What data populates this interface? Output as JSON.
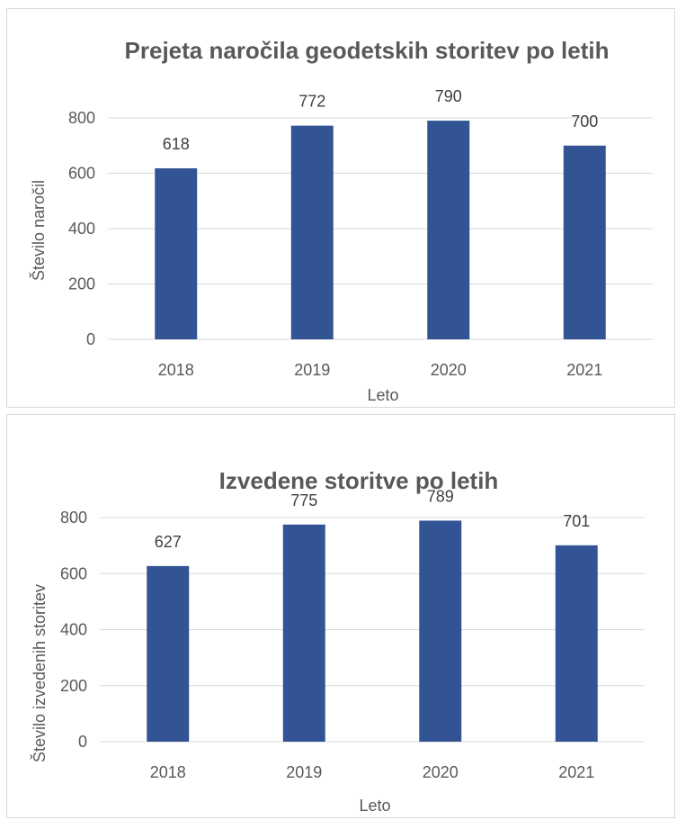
{
  "colors": {
    "bar": "#325394",
    "grid": "#d9d9d9",
    "text": "#595959"
  },
  "chart_data": [
    {
      "type": "bar",
      "title": "Prejeta naročila geodetskih storitev po letih",
      "xlabel": "Leto",
      "ylabel": "Število naročil",
      "categories": [
        "2018",
        "2019",
        "2020",
        "2021"
      ],
      "values": [
        618,
        772,
        790,
        700
      ],
      "yticks": [
        0,
        200,
        400,
        600,
        800
      ],
      "ylim": [
        0,
        800
      ],
      "grid": true,
      "data_labels": true
    },
    {
      "type": "bar",
      "title": "Izvedene storitve po letih",
      "xlabel": "Leto",
      "ylabel": "Število izvedenih storitev",
      "categories": [
        "2018",
        "2019",
        "2020",
        "2021"
      ],
      "values": [
        627,
        775,
        789,
        701
      ],
      "yticks": [
        0,
        200,
        400,
        600,
        800
      ],
      "ylim": [
        0,
        800
      ],
      "grid": true,
      "data_labels": true
    }
  ]
}
